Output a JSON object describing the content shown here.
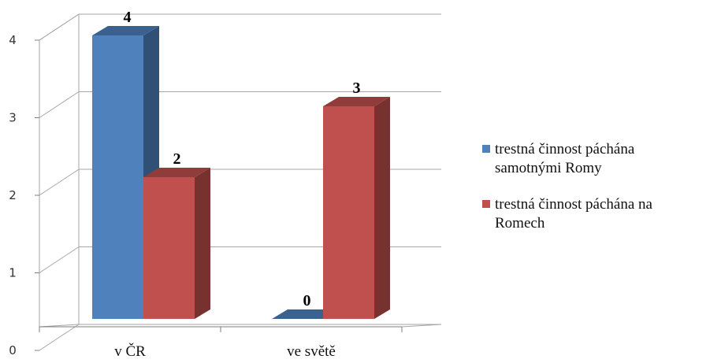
{
  "chart_data": {
    "type": "bar",
    "categories": [
      "v ČR",
      "ve světě"
    ],
    "series": [
      {
        "name": "trestná činnost páchána samotnými Romy",
        "values": [
          4,
          0
        ],
        "color": "#4f81bd"
      },
      {
        "name": "trestná činnost páchána na Romech",
        "values": [
          2,
          3
        ],
        "color": "#c0504d"
      }
    ],
    "ylim": [
      0,
      4
    ],
    "yticks": [
      "0",
      "1",
      "2",
      "3",
      "4"
    ],
    "grid": true,
    "legend_position": "right",
    "style": "3d-clustered-column"
  },
  "legend": {
    "items": [
      {
        "lines": [
          "trestná činnost páchána",
          "samotnými Romy"
        ]
      },
      {
        "lines": [
          "trestná činnost páchána na",
          "Romech"
        ]
      }
    ]
  }
}
